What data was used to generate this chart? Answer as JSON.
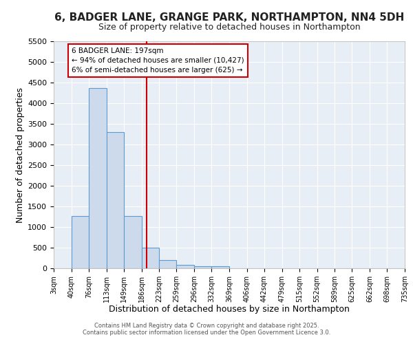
{
  "title_line1": "6, BADGER LANE, GRANGE PARK, NORTHAMPTON, NN4 5DH",
  "title_line2": "Size of property relative to detached houses in Northampton",
  "xlabel": "Distribution of detached houses by size in Northampton",
  "ylabel": "Number of detached properties",
  "bin_edges": [
    3,
    40,
    76,
    113,
    149,
    186,
    223,
    259,
    296,
    332,
    369,
    406,
    442,
    479,
    515,
    552,
    589,
    625,
    662,
    698,
    735
  ],
  "bar_heights": [
    0,
    1275,
    4375,
    3300,
    1275,
    500,
    200,
    90,
    55,
    55,
    0,
    0,
    0,
    0,
    0,
    0,
    0,
    0,
    0,
    0
  ],
  "bar_color": "#ccdaeb",
  "bar_edge_color": "#5b9bd5",
  "vline_x": 197,
  "vline_color": "#cc0000",
  "ylim": [
    0,
    5500
  ],
  "yticks": [
    0,
    500,
    1000,
    1500,
    2000,
    2500,
    3000,
    3500,
    4000,
    4500,
    5000,
    5500
  ],
  "annotation_text": "6 BADGER LANE: 197sqm\n← 94% of detached houses are smaller (10,427)\n6% of semi-detached houses are larger (625) →",
  "bg_color": "#e8eef5",
  "grid_color": "#ffffff",
  "footnote1": "Contains HM Land Registry data © Crown copyright and database right 2025.",
  "footnote2": "Contains public sector information licensed under the Open Government Licence 3.0.",
  "title1_fontsize": 11,
  "title2_fontsize": 9,
  "axis_label_fontsize": 9,
  "tick_fontsize": 7,
  "ytick_fontsize": 8,
  "footnote_fontsize": 6
}
